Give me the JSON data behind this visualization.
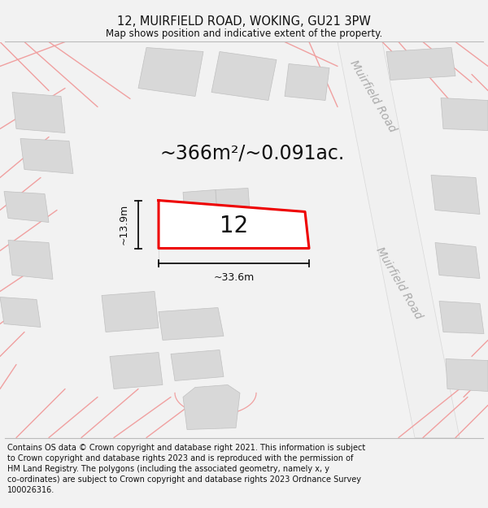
{
  "title_line1": "12, MUIRFIELD ROAD, WOKING, GU21 3PW",
  "title_line2": "Map shows position and indicative extent of the property.",
  "footer_text": "Contains OS data © Crown copyright and database right 2021. This information is subject to Crown copyright and database rights 2023 and is reproduced with the permission of HM Land Registry. The polygons (including the associated geometry, namely x, y co-ordinates) are subject to Crown copyright and database rights 2023 Ordnance Survey 100026316.",
  "area_text": "~366m²/~0.091ac.",
  "property_number": "12",
  "dim_width": "~33.6m",
  "dim_height": "~13.9m",
  "road_label": "Muirfield Road",
  "bg_color": "#f2f2f2",
  "map_bg": "#ffffff",
  "building_fill": "#d8d8d8",
  "building_edge": "#c0c0c0",
  "property_outline": "#ee0000",
  "dim_color": "#111111",
  "road_line_color": "#f0a0a0",
  "road_label_color": "#aaaaaa",
  "title_fontsize": 10.5,
  "subtitle_fontsize": 8.5,
  "footer_fontsize": 7.0,
  "area_fontsize": 17,
  "number_fontsize": 20,
  "dim_fontsize": 9,
  "road_fontsize": 10
}
